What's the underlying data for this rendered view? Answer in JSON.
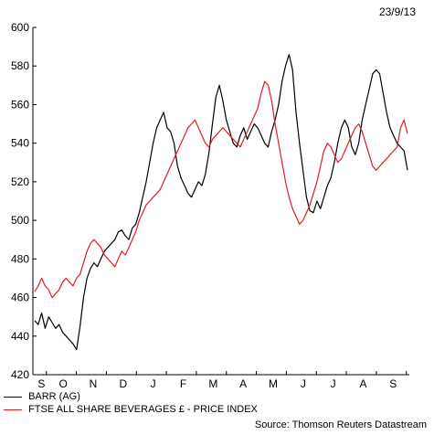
{
  "date_label": "23/9/13",
  "source": "Source: Thomson Reuters Datastream",
  "colors": {
    "barr": "#000000",
    "ftse": "#e31b23",
    "axis": "#000000"
  },
  "chart_data": {
    "type": "line",
    "xlabel": "",
    "ylabel": "",
    "ylim": [
      420,
      600
    ],
    "yticks": [
      420,
      440,
      460,
      480,
      500,
      520,
      540,
      560,
      580,
      600
    ],
    "month_labels": [
      "S",
      "O",
      "N",
      "D",
      "J",
      "F",
      "M",
      "A",
      "M",
      "J",
      "J",
      "A",
      "S"
    ],
    "grid": false,
    "legend_position": "bottom-left",
    "series": [
      {
        "name": "BARR (AG)",
        "color": "#000000",
        "values": [
          448,
          446,
          452,
          444,
          450,
          447,
          444,
          446,
          442,
          440,
          438,
          436,
          433,
          445,
          460,
          470,
          475,
          478,
          476,
          480,
          484,
          486,
          488,
          490,
          494,
          495,
          492,
          490,
          496,
          498,
          504,
          512,
          520,
          530,
          540,
          548,
          552,
          556,
          548,
          546,
          540,
          528,
          522,
          518,
          514,
          512,
          516,
          520,
          518,
          524,
          535,
          550,
          564,
          570,
          562,
          552,
          546,
          540,
          538,
          544,
          548,
          542,
          546,
          550,
          548,
          544,
          540,
          538,
          546,
          552,
          560,
          572,
          580,
          586,
          578,
          556,
          540,
          526,
          512,
          505,
          504,
          510,
          506,
          512,
          518,
          522,
          530,
          540,
          548,
          552,
          548,
          538,
          534,
          540,
          552,
          560,
          568,
          576,
          578,
          576,
          566,
          556,
          548,
          544,
          540,
          538,
          536,
          526
        ]
      },
      {
        "name": "FTSE ALL SHARE BEVERAGES £ - PRICE INDEX",
        "color": "#e31b23",
        "values": [
          463,
          466,
          470,
          466,
          464,
          460,
          462,
          464,
          468,
          470,
          468,
          466,
          470,
          472,
          478,
          484,
          488,
          490,
          488,
          486,
          482,
          480,
          478,
          476,
          480,
          484,
          482,
          486,
          490,
          494,
          500,
          504,
          508,
          510,
          512,
          514,
          516,
          520,
          524,
          528,
          532,
          536,
          540,
          544,
          548,
          550,
          552,
          548,
          544,
          540,
          538,
          542,
          544,
          546,
          548,
          546,
          544,
          542,
          540,
          538,
          542,
          546,
          550,
          554,
          558,
          566,
          572,
          570,
          562,
          550,
          540,
          530,
          520,
          512,
          506,
          502,
          498,
          500,
          504,
          508,
          514,
          520,
          528,
          536,
          540,
          538,
          534,
          530,
          532,
          536,
          540,
          544,
          548,
          550,
          546,
          540,
          534,
          528,
          526,
          528,
          530,
          532,
          534,
          536,
          538,
          548,
          552,
          545
        ]
      }
    ]
  }
}
